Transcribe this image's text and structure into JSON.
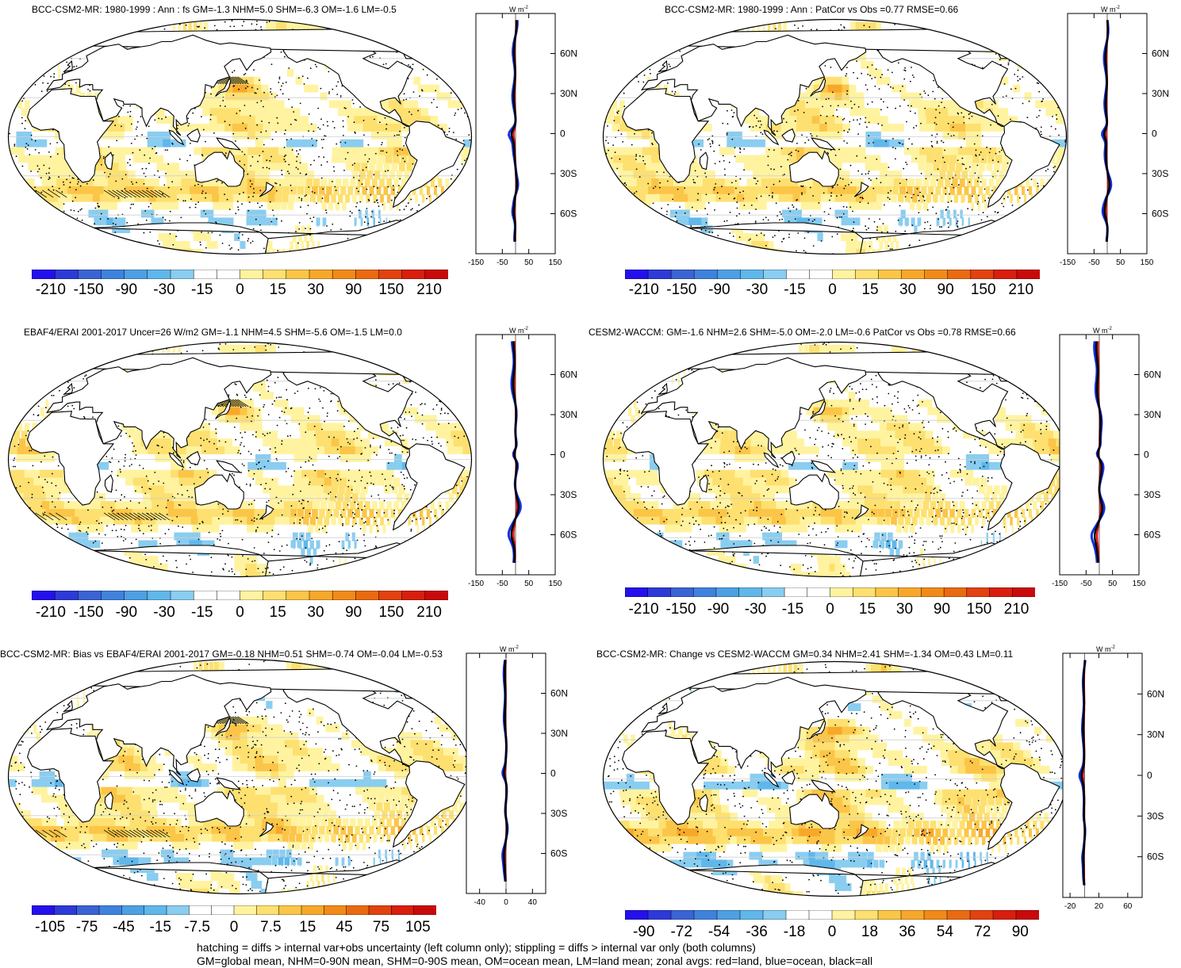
{
  "panels": [
    {
      "title": "BCC-CSM2-MR: 1980-1999 : Ann : fs GM=-1.3 NHM=5.0 SHM=-6.3 OM=-1.6 LM=-0.5",
      "hatching": true,
      "colorbar": {
        "labels": [
          "-210",
          "-150",
          "-90",
          "-30",
          "-15",
          "0",
          "15",
          "30",
          "90",
          "150",
          "210"
        ]
      },
      "zonal": {
        "units": "W m",
        "units_exp": "-2",
        "xticks": [
          "-150",
          "-50",
          "50",
          "150"
        ],
        "yticks": [
          "60N",
          "30N",
          "0",
          "30S",
          "60S"
        ]
      }
    },
    {
      "title": "BCC-CSM2-MR: 1980-1999 : Ann : PatCor vs Obs =0.77 RMSE=0.66",
      "hatching": false,
      "colorbar": {
        "labels": [
          "-210",
          "-150",
          "-90",
          "-30",
          "-15",
          "0",
          "15",
          "30",
          "90",
          "150",
          "210"
        ]
      },
      "zonal": {
        "units": "W m",
        "units_exp": "-2",
        "xticks": [
          "-150",
          "-50",
          "50",
          "150"
        ],
        "yticks": [
          "60N",
          "30N",
          "0",
          "30S",
          "60S"
        ]
      }
    },
    {
      "title": "EBAF4/ERAI 2001-2017 Uncer=26 W/m2 GM=-1.1 NHM=4.5 SHM=-5.6 OM=-1.5 LM=0.0",
      "hatching": true,
      "colorbar": {
        "labels": [
          "-210",
          "-150",
          "-90",
          "-30",
          "-15",
          "0",
          "15",
          "30",
          "90",
          "150",
          "210"
        ]
      },
      "zonal": {
        "units": "W m",
        "units_exp": "-2",
        "xticks": [
          "-150",
          "-50",
          "50",
          "150"
        ],
        "yticks": [
          "60N",
          "30N",
          "0",
          "30S",
          "60S"
        ]
      }
    },
    {
      "title": "CESM2-WACCM: GM=-1.6 NHM=2.6 SHM=-5.0 OM=-2.0 LM=-0.6 PatCor vs Obs =0.78 RMSE=0.66",
      "hatching": false,
      "colorbar": {
        "labels": [
          "-210",
          "-150",
          "-90",
          "-30",
          "-15",
          "0",
          "15",
          "30",
          "90",
          "150",
          "210"
        ]
      },
      "zonal": {
        "units": "W m",
        "units_exp": "-2",
        "xticks": [
          "-150",
          "-50",
          "50",
          "150"
        ],
        "yticks": [
          "60N",
          "30N",
          "0",
          "30S",
          "60S"
        ]
      }
    },
    {
      "title": "BCC-CSM2-MR: Bias vs EBAF4/ERAI 2001-2017 GM=-0.18 NHM=0.51 SHM=-0.74 OM=-0.04 LM=-0.53",
      "hatching": true,
      "colorbar": {
        "labels": [
          "-105",
          "-75",
          "-45",
          "-15",
          "-7.5",
          "0",
          "7.5",
          "15",
          "45",
          "75",
          "105"
        ]
      },
      "zonal": {
        "units": "W m",
        "units_exp": "-2",
        "xticks": [
          "-40",
          "0",
          "40"
        ],
        "yticks": [
          "60N",
          "30N",
          "0",
          "30S",
          "60S"
        ]
      }
    },
    {
      "title": "BCC-CSM2-MR: Change vs CESM2-WACCM GM=0.34 NHM=2.41 SHM=-1.34 OM=0.43 LM=0.11",
      "hatching": false,
      "colorbar": {
        "labels": [
          "-90",
          "-72",
          "-54",
          "-36",
          "-18",
          "0",
          "18",
          "36",
          "54",
          "72",
          "90"
        ]
      },
      "zonal": {
        "units": "W m",
        "units_exp": "-2",
        "xticks": [
          "-20",
          "20",
          "60"
        ],
        "yticks": [
          "60N",
          "30N",
          "0",
          "30S",
          "60S"
        ]
      }
    }
  ],
  "colors": {
    "scale": [
      "#2410ec",
      "#2d3ad7",
      "#3a63d4",
      "#3f82dc",
      "#4da0e3",
      "#60b7ea",
      "#89cdf0",
      "#ffffff",
      "#ffffff",
      "#fff3a0",
      "#fde070",
      "#fbc548",
      "#f7a82a",
      "#f18a18",
      "#ea6a12",
      "#e2420f",
      "#d91e0d",
      "#c90a0a"
    ],
    "land": "#ffffff",
    "zonal_land": "#e81313",
    "zonal_ocean": "#1030e0",
    "zonal_all": "#000000"
  },
  "chart_data": [
    {
      "type": "heatmap",
      "title": "BCC-CSM2-MR: 1980-1999 : Ann : fs GM=-1.3 NHM=5.0 SHM=-6.3 OM=-1.6 LM=-0.5",
      "GM": -1.3,
      "NHM": 5.0,
      "SHM": -6.3,
      "OM": -1.6,
      "LM": -0.5,
      "levels": [
        -210,
        -150,
        -90,
        -30,
        -15,
        0,
        15,
        30,
        90,
        150,
        210
      ],
      "zonal_xlim": [
        -150,
        150
      ],
      "zonal_ylim": [
        -90,
        90
      ]
    },
    {
      "type": "heatmap",
      "title": "BCC-CSM2-MR: 1980-1999 : Ann : PatCor vs Obs =0.77 RMSE=0.66",
      "PatCor": 0.77,
      "RMSE": 0.66,
      "levels": [
        -210,
        -150,
        -90,
        -30,
        -15,
        0,
        15,
        30,
        90,
        150,
        210
      ],
      "zonal_xlim": [
        -150,
        150
      ],
      "zonal_ylim": [
        -90,
        90
      ]
    },
    {
      "type": "heatmap",
      "title": "EBAF4/ERAI 2001-2017 Uncer=26 W/m2 GM=-1.1 NHM=4.5 SHM=-5.6 OM=-1.5 LM=0.0",
      "Uncer": 26,
      "GM": -1.1,
      "NHM": 4.5,
      "SHM": -5.6,
      "OM": -1.5,
      "LM": 0.0,
      "levels": [
        -210,
        -150,
        -90,
        -30,
        -15,
        0,
        15,
        30,
        90,
        150,
        210
      ],
      "zonal_xlim": [
        -150,
        150
      ],
      "zonal_ylim": [
        -90,
        90
      ]
    },
    {
      "type": "heatmap",
      "title": "CESM2-WACCM: GM=-1.6 NHM=2.6 SHM=-5.0 OM=-2.0 LM=-0.6 PatCor vs Obs =0.78 RMSE=0.66",
      "GM": -1.6,
      "NHM": 2.6,
      "SHM": -5.0,
      "OM": -2.0,
      "LM": -0.6,
      "PatCor": 0.78,
      "RMSE": 0.66,
      "levels": [
        -210,
        -150,
        -90,
        -30,
        -15,
        0,
        15,
        30,
        90,
        150,
        210
      ],
      "zonal_xlim": [
        -150,
        150
      ],
      "zonal_ylim": [
        -90,
        90
      ]
    },
    {
      "type": "heatmap",
      "title": "BCC-CSM2-MR: Bias vs EBAF4/ERAI 2001-2017 GM=-0.18 NHM=0.51 SHM=-0.74 OM=-0.04 LM=-0.53",
      "GM": -0.18,
      "NHM": 0.51,
      "SHM": -0.74,
      "OM": -0.04,
      "LM": -0.53,
      "levels": [
        -105,
        -75,
        -45,
        -15,
        -7.5,
        0,
        7.5,
        15,
        45,
        75,
        105
      ],
      "zonal_xlim": [
        -60,
        60
      ],
      "zonal_ylim": [
        -90,
        90
      ]
    },
    {
      "type": "heatmap",
      "title": "BCC-CSM2-MR: Change vs CESM2-WACCM GM=0.34 NHM=2.41 SHM=-1.34 OM=0.43 LM=0.11",
      "GM": 0.34,
      "NHM": 2.41,
      "SHM": -1.34,
      "OM": 0.43,
      "LM": 0.11,
      "levels": [
        -90,
        -72,
        -54,
        -36,
        -18,
        0,
        18,
        36,
        54,
        72,
        90
      ],
      "zonal_xlim": [
        -30,
        80
      ],
      "zonal_ylim": [
        -90,
        90
      ]
    }
  ],
  "footer": {
    "line1": "hatching = diffs > internal var+obs uncertainty (left column only); stippling = diffs > internal var only (both columns)",
    "line2": "GM=global mean, NHM=0-90N mean, SHM=0-90S mean, OM=ocean mean, LM=land mean; zonal avgs: red=land, blue=ocean, black=all"
  }
}
